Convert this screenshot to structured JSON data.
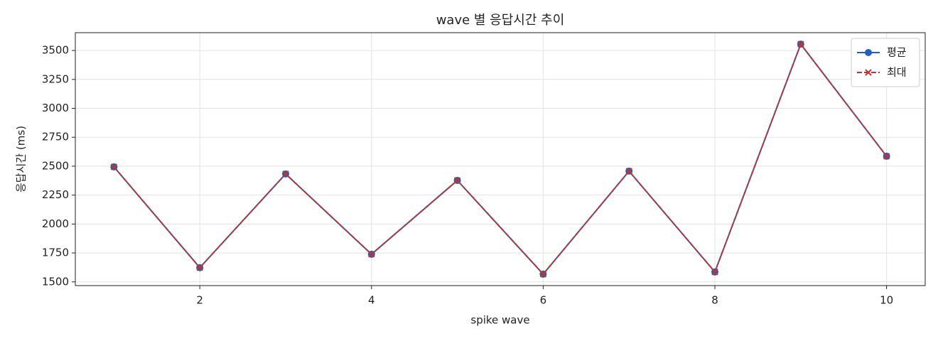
{
  "chart_data": {
    "type": "line",
    "title": "wave 별 응답시간 추이",
    "x_label": "spike wave",
    "y_label": "응답시간 (ms)",
    "x": [
      1,
      2,
      3,
      4,
      5,
      6,
      7,
      8,
      9,
      10
    ],
    "series": [
      {
        "name": "평균",
        "color": "#1f62b8",
        "dash": "solid",
        "marker": "circle",
        "values": [
          2494,
          1623,
          2433,
          1739,
          2377,
          1567,
          2457,
          1586,
          3555,
          2586
        ]
      },
      {
        "name": "최대",
        "color": "#c8302c",
        "dash": "dashed",
        "marker": "x",
        "values": [
          2494,
          1623,
          2433,
          1739,
          2377,
          1567,
          2457,
          1586,
          3555,
          2586
        ]
      }
    ],
    "xlim": [
      0.55,
      10.45
    ],
    "xticks": [
      2,
      4,
      6,
      8,
      10
    ],
    "ylim": [
      1468,
      3654
    ],
    "yticks": [
      1500,
      1750,
      2000,
      2250,
      2500,
      2750,
      3000,
      3250,
      3500
    ],
    "grid": true,
    "legend": "upper right"
  }
}
